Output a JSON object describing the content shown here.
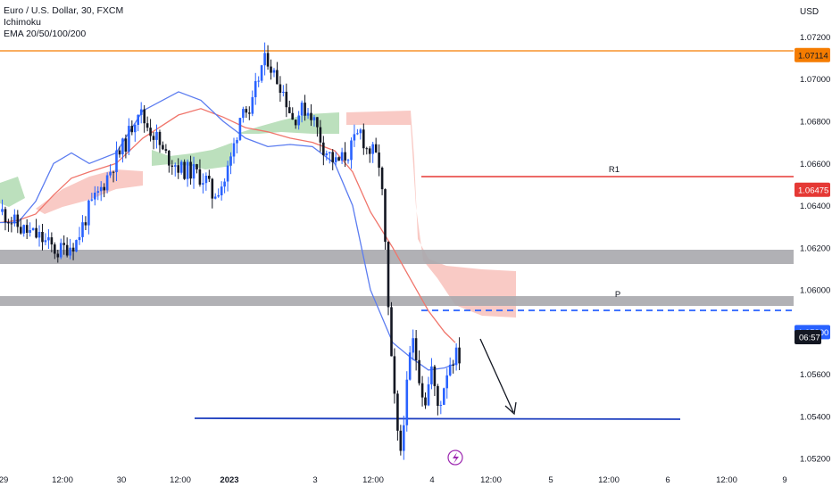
{
  "header": {
    "symbol_line": "Euro / U.S. Dollar, 30, FXCM",
    "indicator_1": "Ichimoku",
    "indicator_2": "EMA 20/50/100/200",
    "currency": "USD"
  },
  "colors": {
    "bull": "#2962ff",
    "bear": "#131722",
    "ema_fast": "#5b7cf0",
    "ema_slow": "#f0756b",
    "cloud_green": "#a5d6a7",
    "cloud_red": "#f7b8b2",
    "resistance": "#e53935",
    "top_line": "#f57c00",
    "support": "#1e3fbf",
    "zone": "#a8a8ad",
    "pivot_dash": "#2962ff"
  },
  "chart_data": {
    "type": "candlestick",
    "title": "Euro / U.S. Dollar, 30, FXCM",
    "y_axis": {
      "unit": "USD",
      "range": [
        1.0515,
        1.0735
      ],
      "ticks": [
        "1.07200",
        "1.07000",
        "1.06800",
        "1.06600",
        "1.06400",
        "1.06200",
        "1.06000",
        "1.05600",
        "1.05400",
        "1.05200"
      ]
    },
    "x_axis": {
      "ticks": [
        "29",
        "12:00",
        "30",
        "12:00",
        "2023",
        "3",
        "12:00",
        "4",
        "12:00",
        "5",
        "12:00",
        "6",
        "12:00",
        "9"
      ]
    },
    "price_path": [
      [
        0,
        1.0637
      ],
      [
        6,
        1.0629
      ],
      [
        12,
        1.0625
      ],
      [
        18,
        1.0618
      ],
      [
        24,
        1.0623
      ],
      [
        28,
        1.0638
      ],
      [
        32,
        1.0648
      ],
      [
        36,
        1.066
      ],
      [
        40,
        1.067
      ],
      [
        44,
        1.0686
      ],
      [
        46,
        1.068
      ],
      [
        50,
        1.0672
      ],
      [
        52,
        1.0665
      ],
      [
        56,
        1.066
      ],
      [
        58,
        1.0657
      ],
      [
        62,
        1.0656
      ],
      [
        66,
        1.0652
      ],
      [
        68,
        1.0645
      ],
      [
        72,
        1.0652
      ],
      [
        74,
        1.0662
      ],
      [
        76,
        1.0675
      ],
      [
        78,
        1.069
      ],
      [
        80,
        1.068
      ],
      [
        82,
        1.0695
      ],
      [
        84,
        1.0706
      ],
      [
        86,
        1.071
      ],
      [
        88,
        1.0702
      ],
      [
        90,
        1.0698
      ],
      [
        92,
        1.069
      ],
      [
        94,
        1.0681
      ],
      [
        96,
        1.0684
      ],
      [
        98,
        1.0686
      ],
      [
        100,
        1.0684
      ],
      [
        102,
        1.0676
      ],
      [
        104,
        1.0668
      ],
      [
        106,
        1.0664
      ],
      [
        108,
        1.066
      ],
      [
        110,
        1.0662
      ],
      [
        112,
        1.0665
      ],
      [
        114,
        1.067
      ],
      [
        116,
        1.0675
      ],
      [
        118,
        1.0667
      ],
      [
        120,
        1.0665
      ],
      [
        122,
        1.066
      ],
      [
        123,
        1.0645
      ],
      [
        124,
        1.062
      ],
      [
        125,
        1.059
      ],
      [
        126,
        1.0565
      ],
      [
        127,
        1.0548
      ],
      [
        128,
        1.053
      ],
      [
        129,
        1.0524
      ],
      [
        130,
        1.054
      ],
      [
        131,
        1.0553
      ],
      [
        132,
        1.0568
      ],
      [
        133,
        1.0575
      ],
      [
        134,
        1.0568
      ],
      [
        135,
        1.056
      ],
      [
        136,
        1.0552
      ],
      [
        137,
        1.0548
      ],
      [
        138,
        1.0555
      ],
      [
        139,
        1.0563
      ],
      [
        140,
        1.0552
      ],
      [
        141,
        1.0545
      ],
      [
        142,
        1.0548
      ],
      [
        143,
        1.0555
      ],
      [
        144,
        1.0562
      ],
      [
        145,
        1.0566
      ],
      [
        146,
        1.0568
      ],
      [
        147,
        1.0569
      ],
      [
        148,
        1.0568
      ]
    ],
    "ema_20": [
      1.0632,
      1.0632,
      1.0642,
      1.066,
      1.0665,
      1.066,
      1.0665,
      1.0685,
      1.0694,
      1.069,
      1.068,
      1.0672,
      1.0668,
      1.0669,
      1.0668,
      1.066,
      1.064,
      1.06,
      1.0575,
      1.0568,
      1.0562,
      1.0563,
      1.0565
    ],
    "ema_50": [
      1.0632,
      1.0633,
      1.0636,
      1.0645,
      1.0653,
      1.0656,
      1.066,
      1.0672,
      1.0683,
      1.0686,
      1.0682,
      1.0677,
      1.0675,
      1.0672,
      1.067,
      1.0666,
      1.0656,
      1.0637,
      1.062,
      1.0605,
      1.059,
      1.058,
      1.0575
    ],
    "cloud": [
      {
        "x": 10,
        "top": 1.0646,
        "bottom": 1.0634,
        "color": "green"
      },
      {
        "x": 70,
        "top": 1.0666,
        "bottom": 1.0656,
        "color": "green"
      },
      {
        "x": 108,
        "top": 1.068,
        "bottom": 1.0668,
        "color": "green"
      },
      {
        "x": 124,
        "top": 1.068,
        "bottom": 1.0665,
        "color": "red"
      },
      {
        "x": 150,
        "top": 1.0592,
        "bottom": 1.058,
        "color": "red"
      }
    ],
    "levels": [
      {
        "name": "top",
        "label": "1.07114",
        "value": 1.07114
      },
      {
        "name": "R1",
        "label": "1.06475",
        "value": 1.06475
      },
      {
        "name": "P",
        "label": "1.05800",
        "value": 1.058
      },
      {
        "name": "support",
        "value": 1.05255
      }
    ],
    "zones": [
      {
        "top": 1.061,
        "bottom": 1.0604
      },
      {
        "top": 1.0586,
        "bottom": 1.0582
      }
    ],
    "current_time_label": "06:57",
    "level_labels": {
      "r1": "R1",
      "p": "P"
    }
  }
}
